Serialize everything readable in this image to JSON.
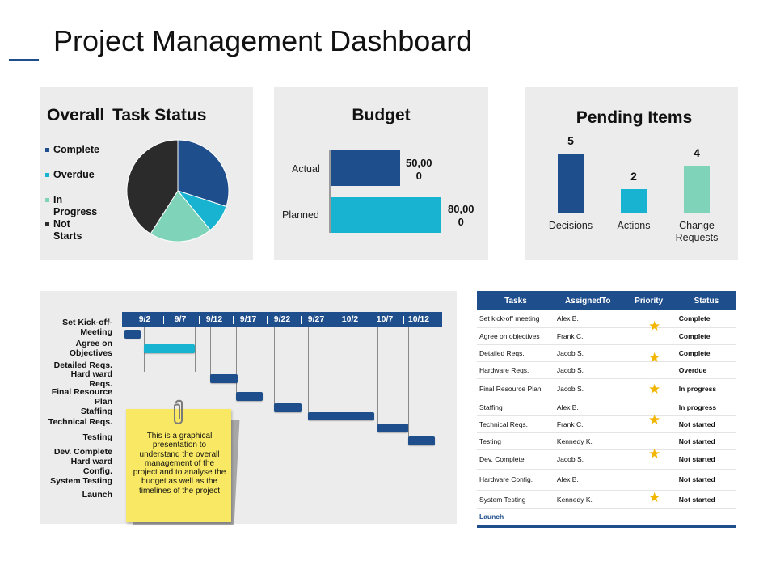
{
  "page": {
    "title": "Project Management Dashboard"
  },
  "colors": {
    "navy": "#1f4e8c",
    "cyan": "#17b3d1",
    "mint": "#7fd3b8",
    "dark": "#2b2b2b",
    "panel": "#ececec",
    "note": "#f8e864",
    "star": "#f2b600"
  },
  "task_status": {
    "title_word1": "Overall",
    "title_word2": "Task Status",
    "legend": [
      {
        "label": "Complete",
        "color": "#1f4e8c"
      },
      {
        "label": "Overdue",
        "color": "#17b3d1"
      },
      {
        "label_line1": "In",
        "label_line2": "Progress",
        "color": "#7fd3b8"
      },
      {
        "label_line1": "Not",
        "label_line2": "Starts",
        "color": "#2b2b2b"
      }
    ],
    "chart_data": {
      "type": "pie",
      "labels": [
        "Complete",
        "Overdue",
        "In Progress",
        "Not Starts"
      ],
      "values": [
        30,
        9,
        20,
        41
      ],
      "colors": [
        "#1f4e8c",
        "#17b3d1",
        "#7fd3b8",
        "#2b2b2b"
      ]
    }
  },
  "budget": {
    "title": "Budget",
    "rows": [
      {
        "label": "Actual",
        "value_line1": "50,00",
        "value_line2": "0"
      },
      {
        "label": "Planned",
        "value_line1": "80,00",
        "value_line2": "0"
      }
    ],
    "chart_data": {
      "type": "bar",
      "orientation": "horizontal",
      "categories": [
        "Actual",
        "Planned"
      ],
      "values": [
        50000,
        80000
      ],
      "colors": [
        "#1f4e8c",
        "#17b3d1"
      ]
    }
  },
  "pending": {
    "title": "Pending Items",
    "bars": [
      {
        "value_label": "5",
        "label_line1": "Decisions",
        "label_line2": ""
      },
      {
        "value_label": "2",
        "label_line1": "Actions",
        "label_line2": ""
      },
      {
        "value_label": "4",
        "label_line1": "Change",
        "label_line2": "Requests"
      }
    ],
    "chart_data": {
      "type": "bar",
      "categories": [
        "Decisions",
        "Actions",
        "Change Requests"
      ],
      "values": [
        5,
        2,
        4
      ],
      "colors": [
        "#1f4e8c",
        "#17b3d1",
        "#7fd3b8"
      ]
    }
  },
  "gantt": {
    "dates": [
      "9/2",
      "9/7",
      "9/12",
      "9/17",
      "9/22",
      "9/27",
      "10/2",
      "10/7",
      "10/12"
    ],
    "tasks": [
      {
        "line1": "Set Kick-off-",
        "line2": "Meeting"
      },
      {
        "line1": "Agree on",
        "line2": "Objectives"
      },
      {
        "line1": "Detailed Reqs.",
        "line2": ""
      },
      {
        "line1": "Hard ward",
        "line2": "Reqs."
      },
      {
        "line1": "Final Resource",
        "line2": "Plan"
      },
      {
        "line1": "Staffing",
        "line2": ""
      },
      {
        "line1": "Technical Reqs.",
        "line2": ""
      },
      {
        "line1": "Testing",
        "line2": ""
      },
      {
        "line1": "Dev. Complete",
        "line2": ""
      },
      {
        "line1": "Hard ward",
        "line2": "Config."
      },
      {
        "line1": "System Testing",
        "line2": ""
      },
      {
        "line1": "Launch",
        "line2": ""
      }
    ],
    "note": "This is a graphical presentation to understand the overall management of the project and to analyse the budget as well as the timelines of the project"
  },
  "table": {
    "headers": [
      "Tasks",
      "AssignedTo",
      "Priority",
      "Status"
    ],
    "rows": [
      {
        "task": "Set kick-off meeting",
        "assigned": "Alex B.",
        "status": "Complete"
      },
      {
        "task": "Agree on objectives",
        "assigned": "Frank C.",
        "status": "Complete"
      },
      {
        "task": "Detailed Reqs.",
        "assigned": "Jacob S.",
        "status": "Complete"
      },
      {
        "task": "Hardware Reqs.",
        "assigned": "Jacob S.",
        "status": "Overdue"
      },
      {
        "task": "Final Resource Plan",
        "assigned": "Jacob S.",
        "status": "In progress"
      },
      {
        "task": "Staffing",
        "assigned": "Alex B.",
        "status": "In progress"
      },
      {
        "task": "Technical Reqs.",
        "assigned": "Frank C.",
        "status": "Not started"
      },
      {
        "task": "Testing",
        "assigned": "Kennedy K.",
        "status": "Not started"
      },
      {
        "task": "Dev. Complete",
        "assigned": "Jacob S.",
        "status": "Not started"
      },
      {
        "task": "Hardware Config.",
        "assigned": "Alex B.",
        "status": "Not started"
      },
      {
        "task": "System Testing",
        "assigned": "Kennedy K.",
        "status": "Not started"
      },
      {
        "task": "Launch",
        "assigned": "",
        "status": ""
      }
    ],
    "star_count": 6
  }
}
